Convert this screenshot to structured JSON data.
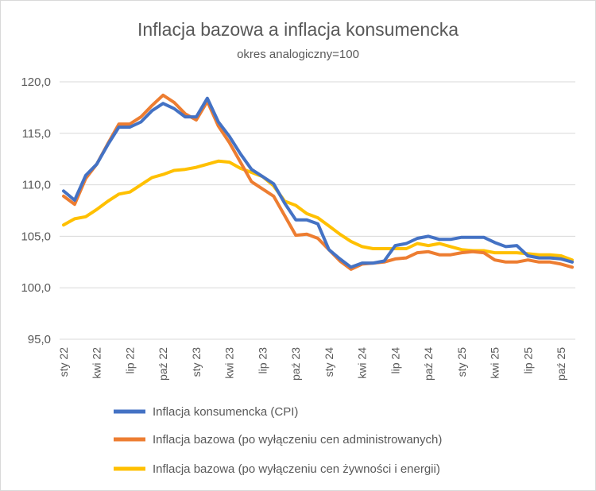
{
  "chart_data": {
    "type": "line",
    "title": "Inflacja bazowa a inflacja konsumencka",
    "subtitle": "okres analogiczny=100",
    "xlabel": "",
    "ylabel": "",
    "ylim": [
      95,
      120
    ],
    "yticks": [
      95,
      100,
      105,
      110,
      115,
      120
    ],
    "ytick_labels": [
      "95,0",
      "100,0",
      "105,0",
      "110,0",
      "115,0",
      "120,0"
    ],
    "grid": true,
    "legend_position": "bottom",
    "tick_labels": [
      {
        "index": 0,
        "label": "sty 22"
      },
      {
        "index": 3,
        "label": "kwi 22"
      },
      {
        "index": 6,
        "label": "lip 22"
      },
      {
        "index": 9,
        "label": "paź 22"
      },
      {
        "index": 12,
        "label": "sty 23"
      },
      {
        "index": 15,
        "label": "kwi 23"
      },
      {
        "index": 18,
        "label": "lip 23"
      },
      {
        "index": 21,
        "label": "paź 23"
      },
      {
        "index": 24,
        "label": "sty 24"
      },
      {
        "index": 27,
        "label": "kwi 24"
      },
      {
        "index": 30,
        "label": "lip 24"
      },
      {
        "index": 33,
        "label": "paź 24"
      },
      {
        "index": 36,
        "label": "sty 25"
      },
      {
        "index": 39,
        "label": "kwi 25"
      },
      {
        "index": 42,
        "label": "lip 25"
      },
      {
        "index": 45,
        "label": "paź 25"
      }
    ],
    "series": [
      {
        "name": "Inflacja konsumencka (CPI)",
        "color": "#4472c4",
        "values": [
          109.4,
          108.5,
          110.9,
          112.0,
          113.9,
          115.6,
          115.6,
          116.1,
          117.2,
          117.9,
          117.4,
          116.6,
          116.6,
          118.4,
          116.1,
          114.7,
          113.0,
          111.5,
          110.8,
          110.1,
          108.2,
          106.6,
          106.6,
          106.2,
          103.7,
          102.8,
          102.0,
          102.4,
          102.4,
          102.6,
          104.1,
          104.3,
          104.8,
          105.0,
          104.7,
          104.7,
          104.9,
          104.9,
          104.9,
          104.4,
          104.0,
          104.1,
          103.1,
          102.9,
          102.9,
          102.8,
          102.5
        ]
      },
      {
        "name": "Inflacja bazowa (po wyłączeniu cen administrowanych)",
        "color": "#ed7d31",
        "values": [
          108.9,
          108.1,
          110.6,
          112.0,
          114.0,
          115.9,
          115.9,
          116.6,
          117.7,
          118.7,
          118.0,
          116.9,
          116.3,
          118.1,
          115.7,
          114.1,
          112.2,
          110.3,
          109.6,
          108.9,
          107.0,
          105.1,
          105.2,
          104.8,
          103.7,
          102.6,
          101.8,
          102.3,
          102.4,
          102.5,
          102.8,
          102.9,
          103.4,
          103.5,
          103.2,
          103.2,
          103.4,
          103.5,
          103.4,
          102.7,
          102.5,
          102.5,
          102.7,
          102.5,
          102.5,
          102.3,
          102.0
        ]
      },
      {
        "name": "Inflacja bazowa (po wyłączeniu cen żywności i energii)",
        "color": "#ffc000",
        "values": [
          106.1,
          106.7,
          106.9,
          107.6,
          108.4,
          109.1,
          109.3,
          110.0,
          110.7,
          111.0,
          111.4,
          111.5,
          111.7,
          112.0,
          112.3,
          112.2,
          111.6,
          111.2,
          110.8,
          109.9,
          108.4,
          108.0,
          107.2,
          106.8,
          106.0,
          105.2,
          104.5,
          104.0,
          103.8,
          103.8,
          103.8,
          103.8,
          104.3,
          104.1,
          104.3,
          104.0,
          103.7,
          103.6,
          103.6,
          103.4,
          103.4,
          103.4,
          103.3,
          103.2,
          103.2,
          103.1,
          102.7
        ]
      }
    ]
  }
}
